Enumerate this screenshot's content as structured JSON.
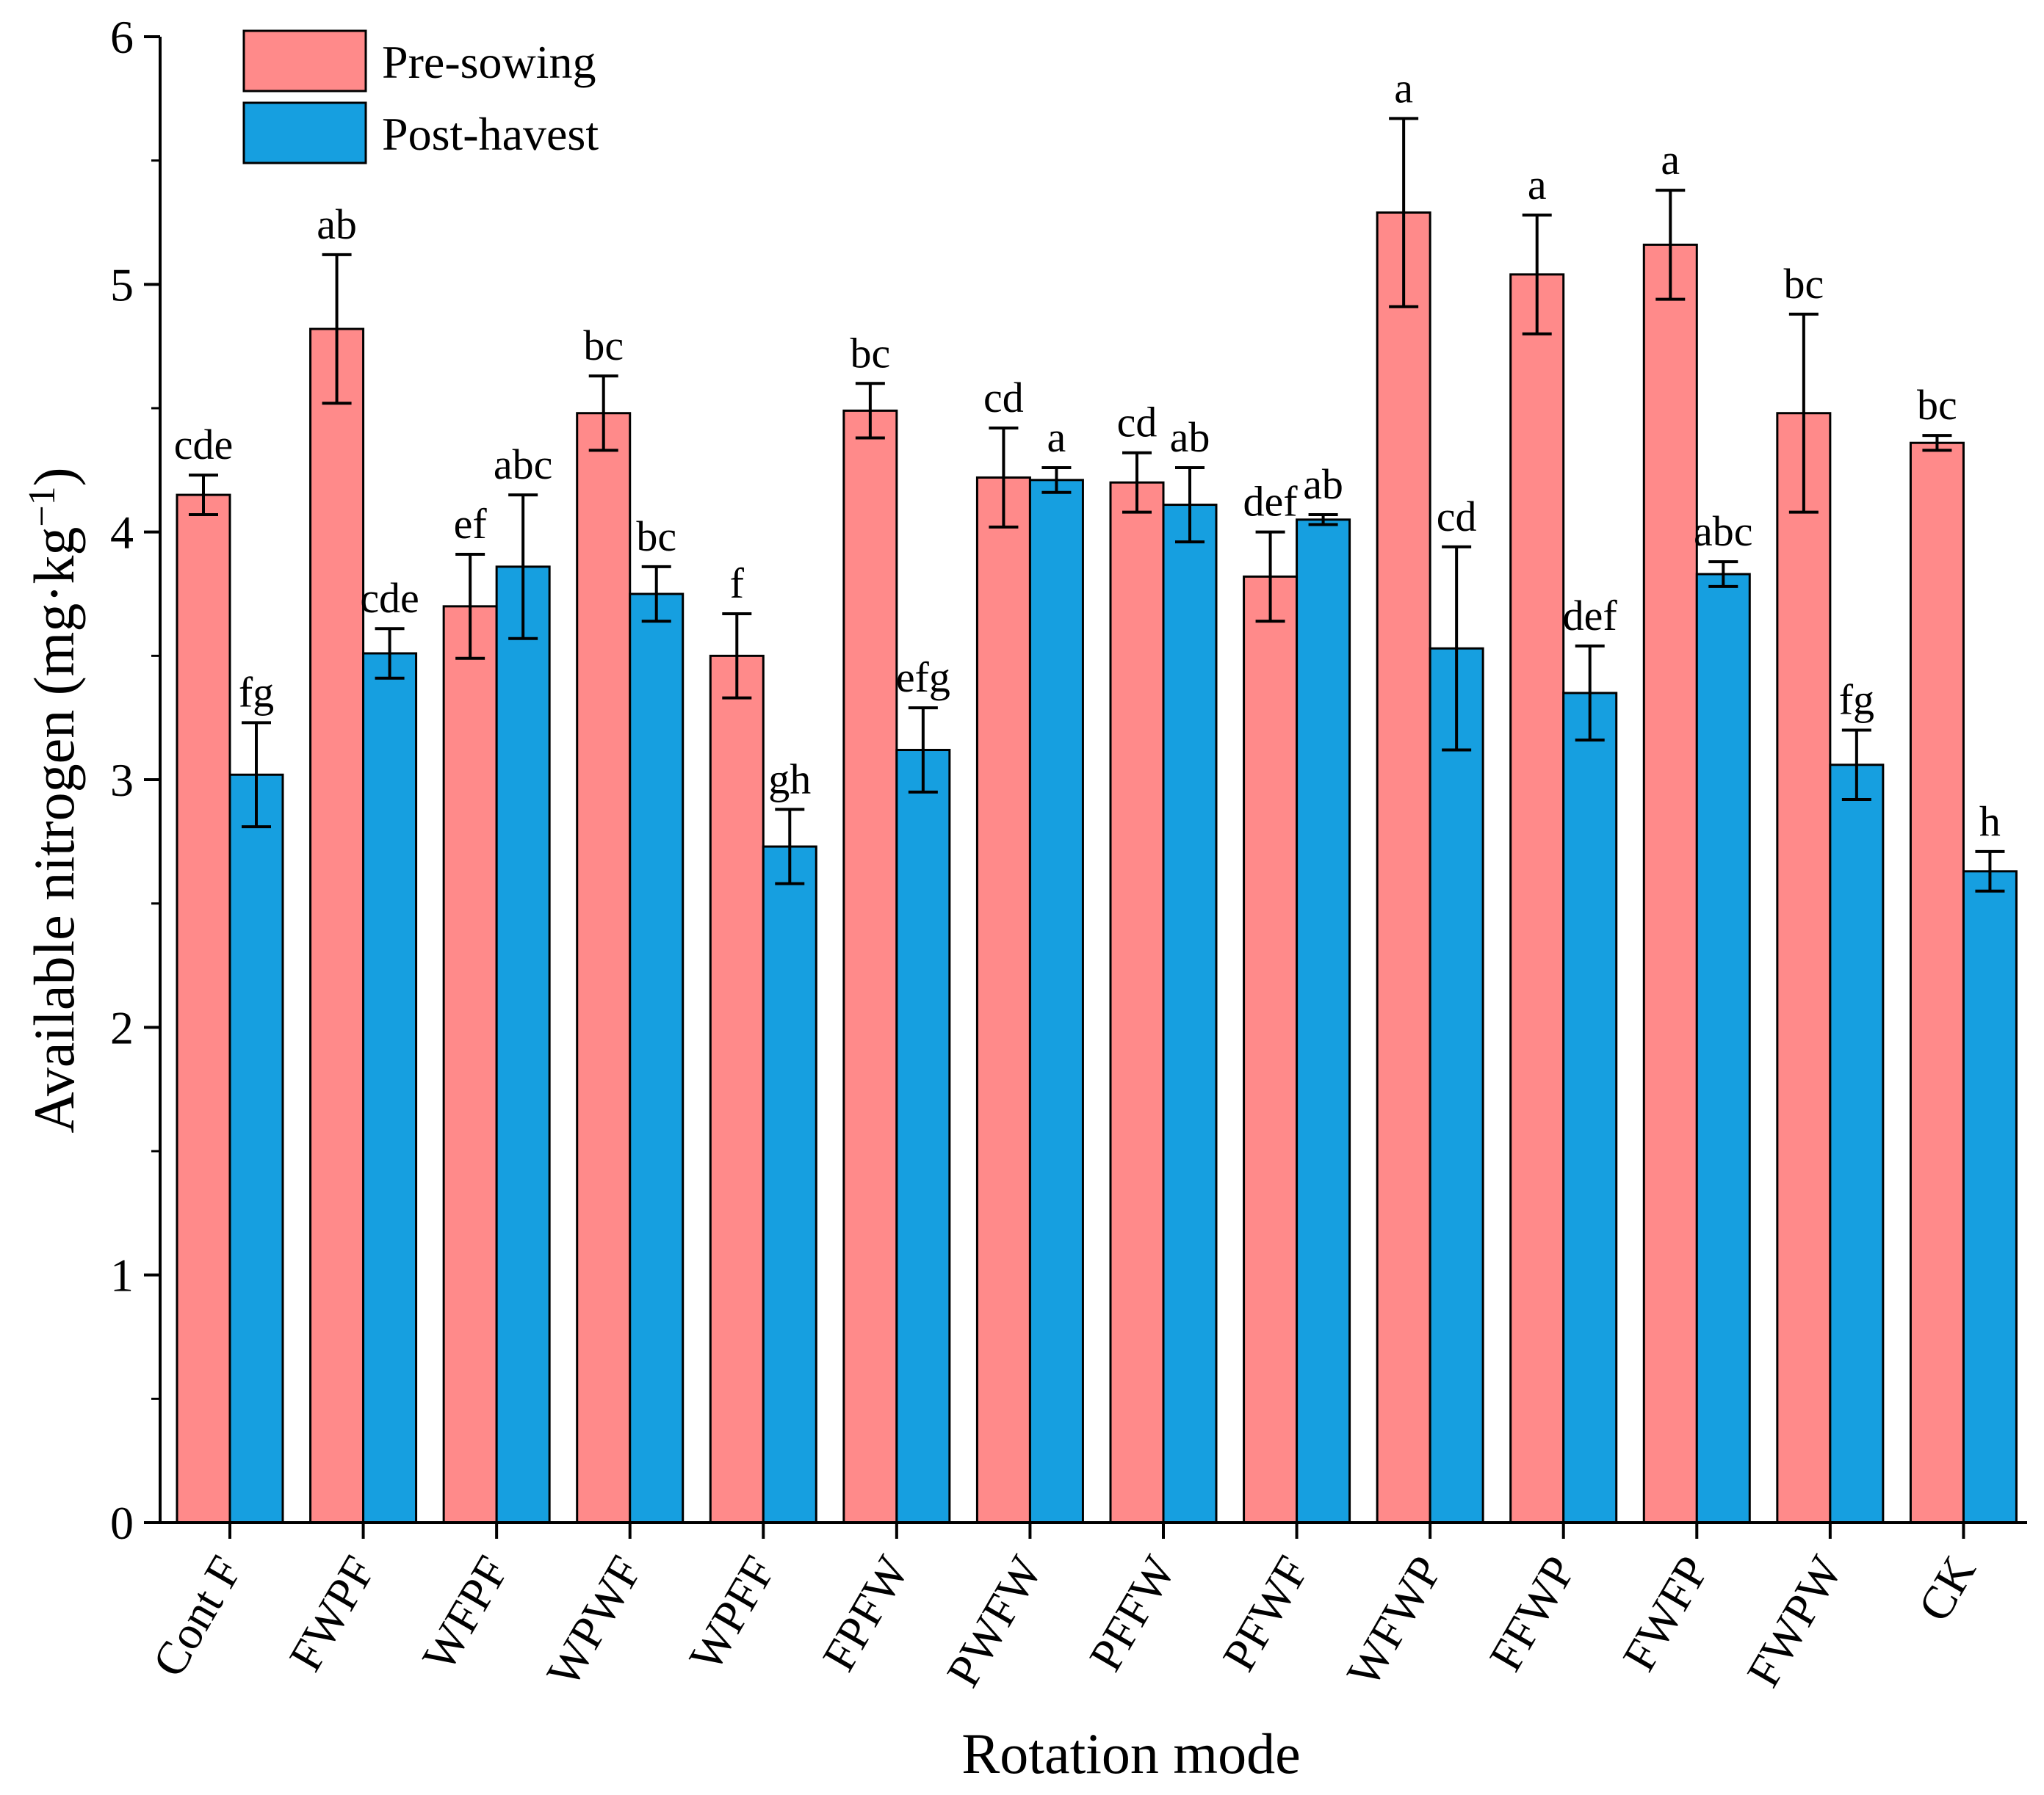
{
  "chart_data": {
    "type": "bar",
    "title": "",
    "xlabel": "Rotation mode",
    "ylabel": "Available nitrogen (mg·kg",
    "ylabel_sup": "−1",
    "ylabel_close": ")",
    "ylim": [
      0,
      6
    ],
    "yticks": [
      "0",
      "1",
      "2",
      "3",
      "4",
      "5",
      "6"
    ],
    "categories": [
      "Cont F",
      "FWPF",
      "WFPF",
      "WPWF",
      "WPFF",
      "FPFW",
      "PWFW",
      "PFFW",
      "PFWF",
      "WFWP",
      "FFWP",
      "FWFP",
      "FWPW",
      "CK"
    ],
    "legend_position": "top-left",
    "series": [
      {
        "name": "Pre-sowing",
        "color": "#FF8A8A",
        "values": [
          4.15,
          4.82,
          3.7,
          4.48,
          3.5,
          4.49,
          4.22,
          4.2,
          3.82,
          5.29,
          5.04,
          5.16,
          4.48,
          4.36
        ],
        "errors": [
          0.08,
          0.3,
          0.21,
          0.15,
          0.17,
          0.11,
          0.2,
          0.12,
          0.18,
          0.38,
          0.24,
          0.22,
          0.4,
          0.03
        ],
        "sig_labels": [
          "cde",
          "ab",
          "ef",
          "bc",
          "f",
          "bc",
          "cd",
          "cd",
          "def",
          "a",
          "a",
          "a",
          "bc",
          "bc"
        ]
      },
      {
        "name": "Post-havest",
        "color": "#169FE0",
        "values": [
          3.02,
          3.51,
          3.86,
          3.75,
          2.73,
          3.12,
          4.21,
          4.11,
          4.05,
          3.53,
          3.35,
          3.83,
          3.06,
          2.63
        ],
        "errors": [
          0.21,
          0.1,
          0.29,
          0.11,
          0.15,
          0.17,
          0.05,
          0.15,
          0.02,
          0.41,
          0.19,
          0.05,
          0.14,
          0.08
        ],
        "sig_labels": [
          "fg",
          "cde",
          "abc",
          "bc",
          "gh",
          "efg",
          "a",
          "ab",
          "ab",
          "cd",
          "def",
          "abc",
          "fg",
          "h"
        ]
      }
    ]
  }
}
